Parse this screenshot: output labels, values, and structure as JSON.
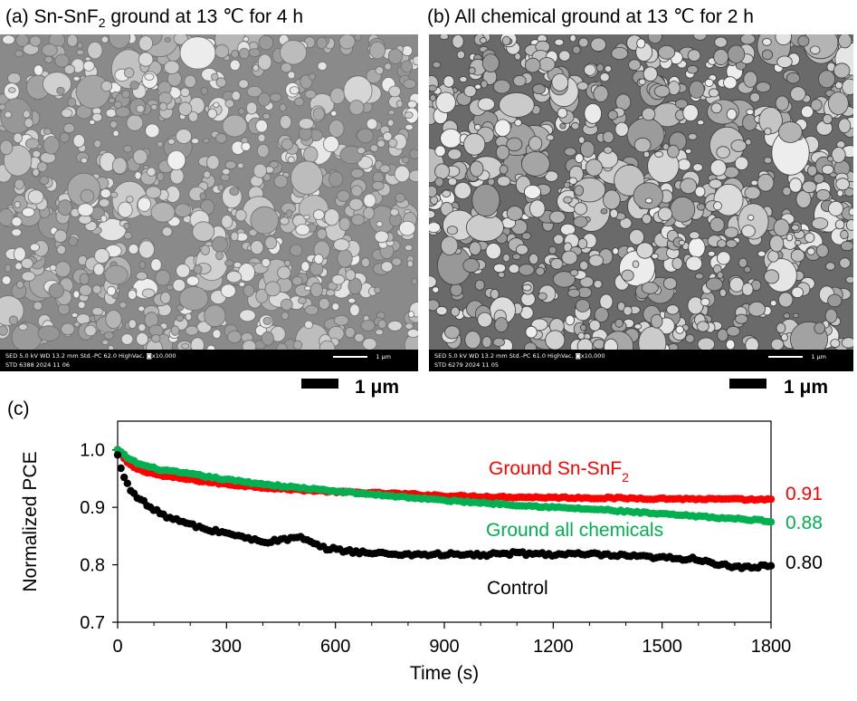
{
  "panels": {
    "a": {
      "title_prefix": "(a) Sn-SnF",
      "title_sub": "2",
      "title_suffix": " ground at 13 ℃ for 4 h",
      "sem_info": {
        "row1": "SED    5.0 kV   WD 13.2 mm    Std.-PC 62.0    HighVac.  ◙x10,000",
        "row2": "STD    6388     2024 11 06",
        "scale": "1 μm"
      },
      "scale_bar_label": "1 μm"
    },
    "b": {
      "title": "(b) All chemical ground at 13 ℃ for 2 h",
      "sem_info": {
        "row1": "SED    5.0 kV   WD 13.2 mm    Std.-PC 61.0    HighVac.  ◙x10,000",
        "row2": "STD    6279     2024 11 05",
        "scale": "1 μm"
      },
      "scale_bar_label": "1 μm"
    },
    "c": {
      "label": "(c)"
    }
  },
  "chart_data": {
    "type": "scatter",
    "xlabel": "Time (s)",
    "ylabel": "Normalized PCE",
    "xlim": [
      0,
      1800
    ],
    "ylim": [
      0.7,
      1.05
    ],
    "xticks": [
      0,
      300,
      600,
      900,
      1200,
      1500,
      1800
    ],
    "yticks": [
      0.7,
      0.8,
      0.9,
      1.0
    ],
    "ytick_labels": [
      "0.7",
      "0.8",
      "0.9",
      "1.0"
    ],
    "grid": false,
    "series": [
      {
        "name": "Ground Sn-SnF2",
        "label_prefix": "Ground Sn-SnF",
        "label_sub": "2",
        "color": "#ff0000",
        "end_value": "0.91",
        "anchors": [
          [
            0,
            1.0
          ],
          [
            30,
            0.975
          ],
          [
            60,
            0.965
          ],
          [
            120,
            0.955
          ],
          [
            200,
            0.948
          ],
          [
            300,
            0.94
          ],
          [
            450,
            0.932
          ],
          [
            600,
            0.927
          ],
          [
            750,
            0.924
          ],
          [
            900,
            0.92
          ],
          [
            1050,
            0.918
          ],
          [
            1200,
            0.917
          ],
          [
            1350,
            0.916
          ],
          [
            1500,
            0.915
          ],
          [
            1650,
            0.914
          ],
          [
            1800,
            0.913
          ]
        ]
      },
      {
        "name": "Ground all chemicals",
        "color": "#00b050",
        "end_value": "0.88",
        "anchors": [
          [
            0,
            1.0
          ],
          [
            30,
            0.985
          ],
          [
            60,
            0.975
          ],
          [
            120,
            0.965
          ],
          [
            200,
            0.958
          ],
          [
            300,
            0.948
          ],
          [
            450,
            0.937
          ],
          [
            600,
            0.928
          ],
          [
            750,
            0.92
          ],
          [
            900,
            0.912
          ],
          [
            1050,
            0.906
          ],
          [
            1200,
            0.9
          ],
          [
            1350,
            0.895
          ],
          [
            1500,
            0.888
          ],
          [
            1650,
            0.882
          ],
          [
            1800,
            0.876
          ]
        ]
      },
      {
        "name": "Control",
        "color": "#000000",
        "end_value": "0.80",
        "anchors": [
          [
            0,
            0.99
          ],
          [
            10,
            0.965
          ],
          [
            30,
            0.935
          ],
          [
            60,
            0.915
          ],
          [
            100,
            0.895
          ],
          [
            150,
            0.88
          ],
          [
            200,
            0.87
          ],
          [
            250,
            0.86
          ],
          [
            300,
            0.856
          ],
          [
            360,
            0.845
          ],
          [
            420,
            0.84
          ],
          [
            500,
            0.848
          ],
          [
            560,
            0.83
          ],
          [
            620,
            0.825
          ],
          [
            700,
            0.82
          ],
          [
            800,
            0.818
          ],
          [
            900,
            0.818
          ],
          [
            1000,
            0.817
          ],
          [
            1100,
            0.82
          ],
          [
            1200,
            0.818
          ],
          [
            1300,
            0.818
          ],
          [
            1400,
            0.815
          ],
          [
            1500,
            0.812
          ],
          [
            1600,
            0.81
          ],
          [
            1660,
            0.8
          ],
          [
            1700,
            0.795
          ],
          [
            1750,
            0.795
          ],
          [
            1800,
            0.8
          ]
        ]
      }
    ]
  },
  "colors": {
    "red": "#ff0000",
    "green": "#00b050",
    "black": "#000000"
  }
}
